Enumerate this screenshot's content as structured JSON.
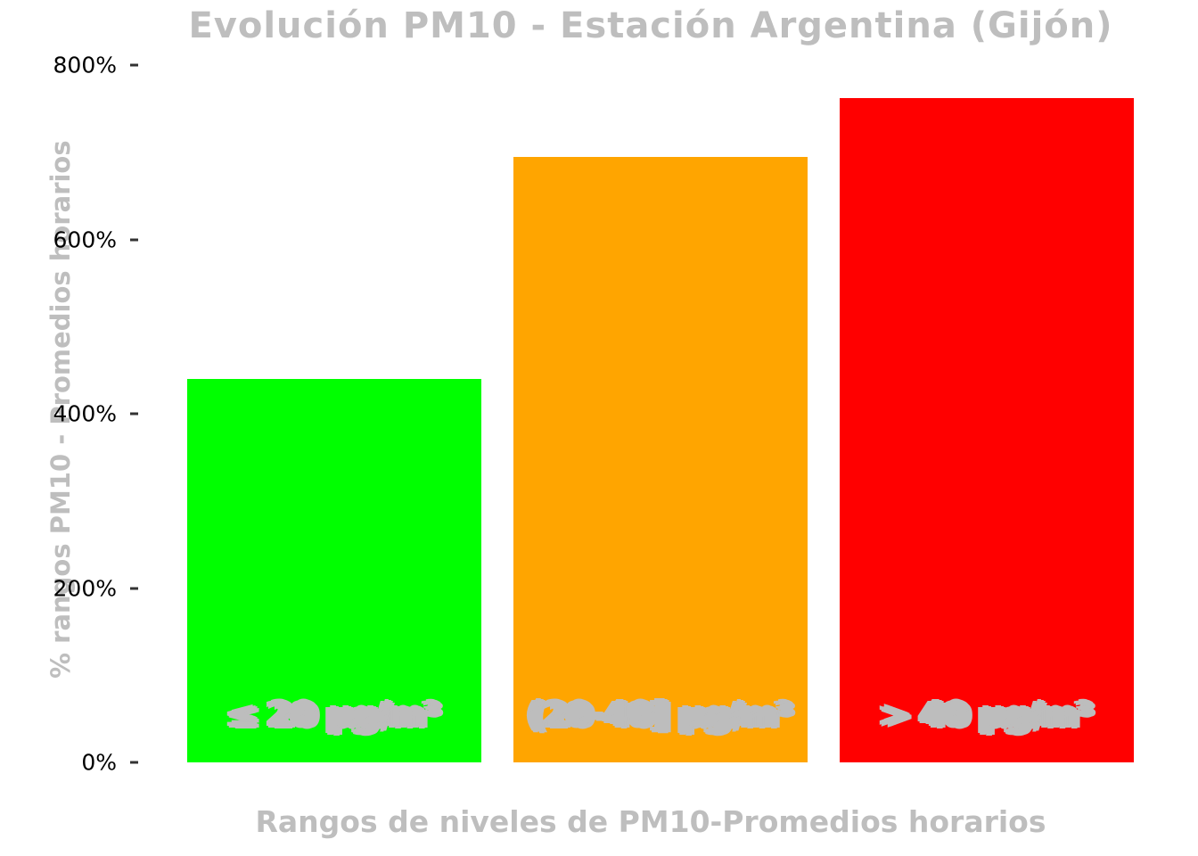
{
  "chart_data": {
    "type": "bar",
    "title": "Evolución PM10 - Estación Argentina (Gijón)",
    "xlabel": "Rangos de niveles de PM10-Promedios horarios",
    "ylabel": "% rangos PM10 - Promedios horarios",
    "categories": [
      "≤ 20 µg/m³",
      "(20-40] µg/m³",
      "> 40 µg/m³"
    ],
    "values": [
      440,
      695,
      762
    ],
    "bar_labels": [
      "≤ 20 µg/m³",
      "(20-40] µg/m³",
      "> 40 µg/m³"
    ],
    "bar_colors": [
      "#00ff00",
      "#ffa500",
      "#ff0000"
    ],
    "y_ticks": [
      "0%",
      "200%",
      "400%",
      "600%",
      "800%"
    ],
    "y_tick_values": [
      0,
      200,
      400,
      600,
      800
    ],
    "ylim": [
      0,
      800
    ],
    "grid": false,
    "legend": "none",
    "label_color": "#bdbdbd",
    "title_color": "#bebebe",
    "background": "#ffffff"
  }
}
